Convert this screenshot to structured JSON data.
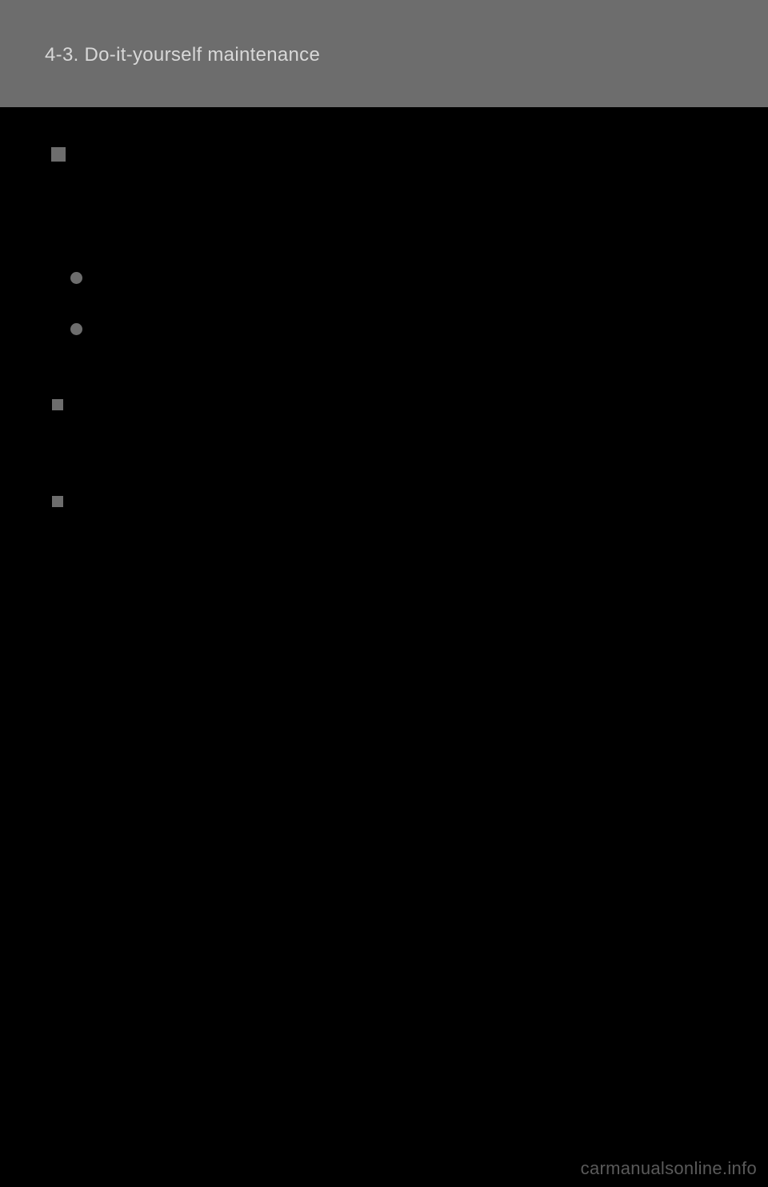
{
  "header": {
    "section_title": "4-3. Do-it-yourself maintenance"
  },
  "watermark": "carmanualsonline.info",
  "colors": {
    "background": "#000000",
    "header_bar": "#6d6d6d",
    "header_text": "#d8d8d8",
    "bullet": "#6d6d6d",
    "watermark": "#5a5a5a"
  }
}
